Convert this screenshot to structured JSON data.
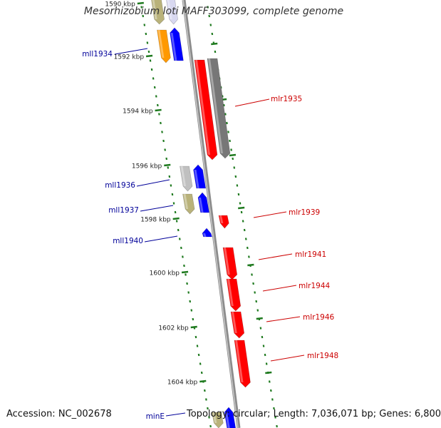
{
  "title": "Mesorhizobium loti MAFF303099, complete genome",
  "footer": {
    "accession": "Accession: NC_002678",
    "topology": "Topology: circular; Length: 7,036,071 bp; Genes: 6,800"
  },
  "colors": {
    "backbone": "#8c8c8c",
    "tick": "#1f7a1f",
    "forward_gene": "#ff0000",
    "reverse_gene": "#0000ff",
    "forward_label": "#cc0000",
    "reverse_label": "#000099",
    "pseudo_gray": "#777777",
    "khaki": "#b9b27a",
    "orange": "#ff9900",
    "light_gray": "#c0c0c0"
  },
  "scale": {
    "unit": "kbp",
    "tick_labels": [
      "1590 kbp",
      "1592 kbp",
      "1594 kbp",
      "1596 kbp",
      "1598 kbp",
      "1600 kbp",
      "1602 kbp",
      "1604 kbp"
    ]
  },
  "genes": [
    {
      "name": "mll1934",
      "strand": "reverse"
    },
    {
      "name": "mlr1935",
      "strand": "forward"
    },
    {
      "name": "mll1936",
      "strand": "reverse"
    },
    {
      "name": "mll1937",
      "strand": "reverse"
    },
    {
      "name": "mlr1939",
      "strand": "forward"
    },
    {
      "name": "mll1940",
      "strand": "reverse"
    },
    {
      "name": "mlr1941",
      "strand": "forward"
    },
    {
      "name": "mlr1944",
      "strand": "forward"
    },
    {
      "name": "mlr1946",
      "strand": "forward"
    },
    {
      "name": "mlr1948",
      "strand": "forward"
    },
    {
      "name": "minE",
      "strand": "reverse"
    }
  ]
}
